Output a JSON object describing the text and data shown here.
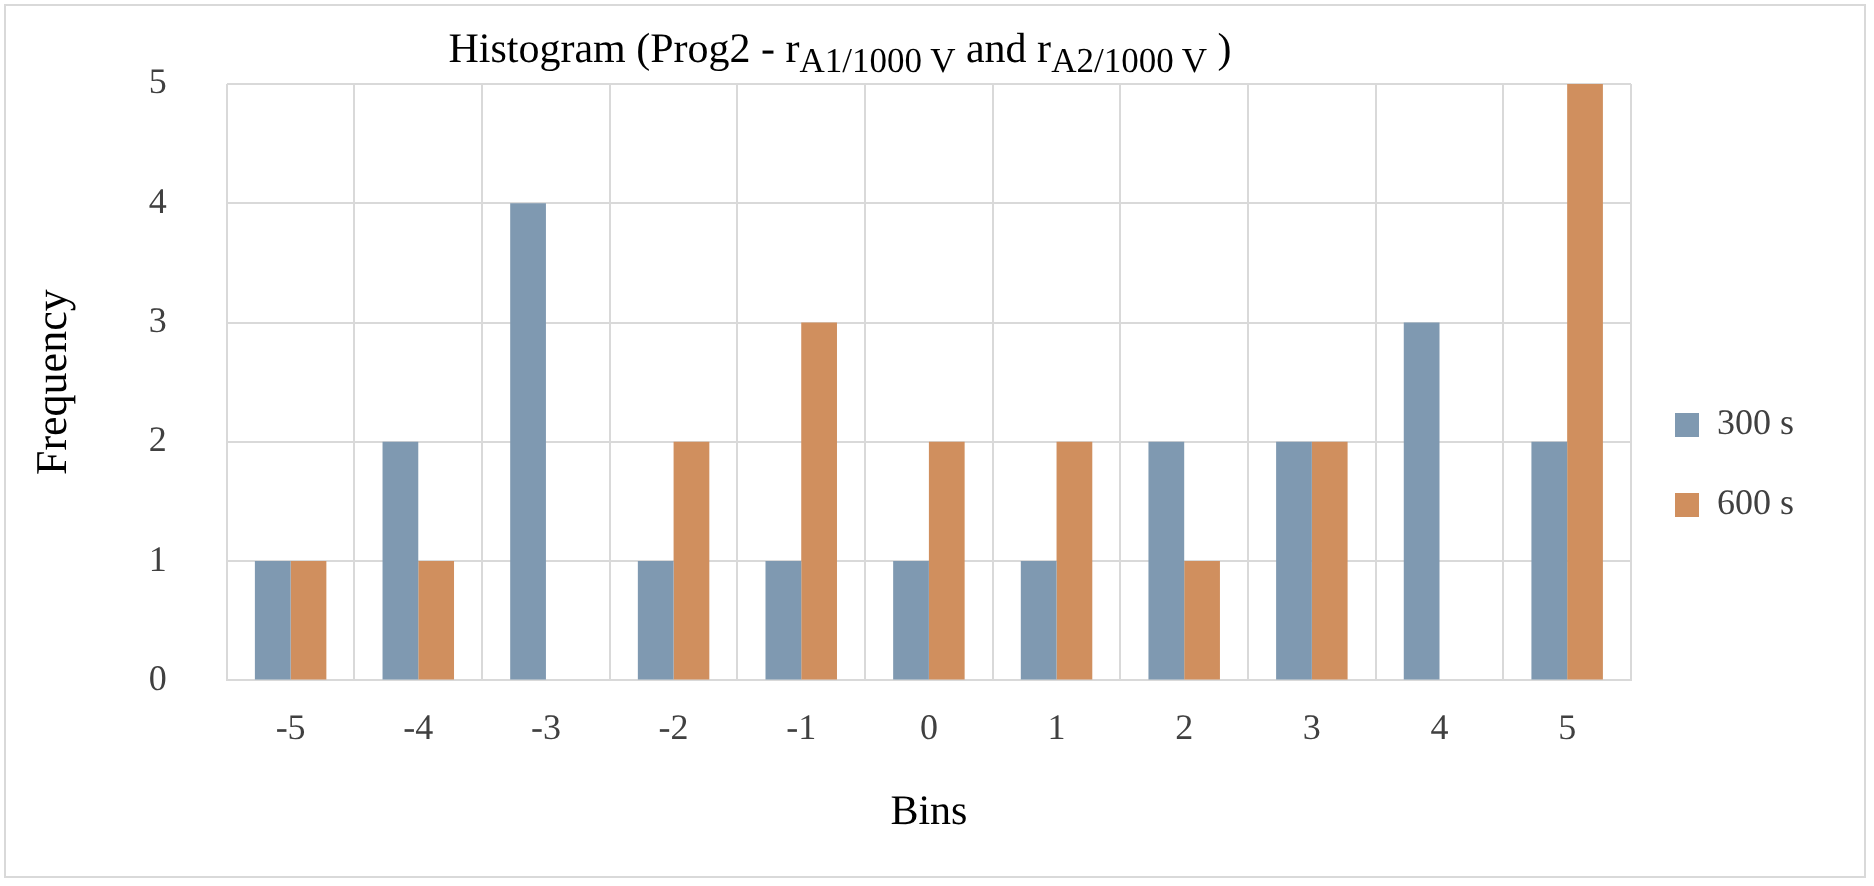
{
  "chart_data": {
    "type": "bar",
    "title": "Histogram (Prog2 - r$_{A1/1000 V}$ and r$_{A2/1000 V}$ )",
    "xlabel": "Bins",
    "ylabel": "Frequency",
    "categories": [
      "-5",
      "-4",
      "-3",
      "-2",
      "-1",
      "0",
      "1",
      "2",
      "3",
      "4",
      "5"
    ],
    "series": [
      {
        "name": "300 s",
        "color": "#7f99b1",
        "values": [
          1,
          2,
          4,
          1,
          1,
          1,
          1,
          2,
          2,
          3,
          2
        ]
      },
      {
        "name": "600 s",
        "color": "#d08f5e",
        "values": [
          1,
          1,
          0,
          2,
          3,
          2,
          2,
          1,
          2,
          0,
          5
        ]
      }
    ],
    "ylim": [
      0,
      5
    ],
    "yticks": [
      0,
      1,
      2,
      3,
      4,
      5
    ],
    "grid": true,
    "legend": "right"
  }
}
